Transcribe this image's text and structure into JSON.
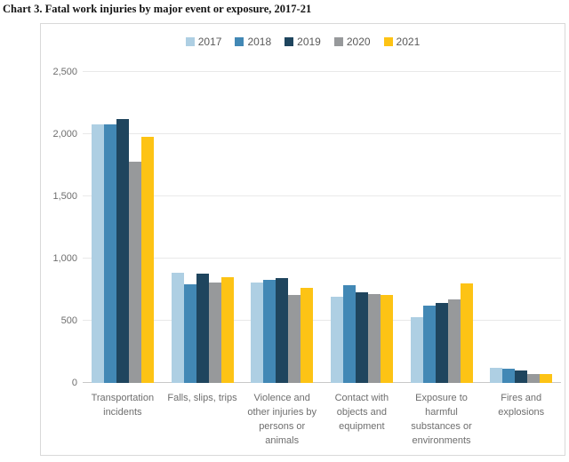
{
  "title": "Chart 3. Fatal work injuries by major event or exposure, 2017-21",
  "chart_data": {
    "type": "bar",
    "title": "Chart 3. Fatal work injuries by major event or exposure, 2017-21",
    "categories": [
      "Transportation incidents",
      "Falls, slips, trips",
      "Violence and other injuries by persons or animals",
      "Contact with objects and equipment",
      "Exposure to harmful substances or environments",
      "Fires and explosions"
    ],
    "series": [
      {
        "name": "2017",
        "color": "#aecfe3",
        "values": [
          2077,
          887,
          807,
          695,
          531,
          123
        ]
      },
      {
        "name": "2018",
        "color": "#4288b5",
        "values": [
          2080,
          791,
          828,
          786,
          621,
          115
        ]
      },
      {
        "name": "2019",
        "color": "#1f455e",
        "values": [
          2122,
          880,
          841,
          732,
          642,
          99
        ]
      },
      {
        "name": "2020",
        "color": "#97999b",
        "values": [
          1778,
          805,
          705,
          716,
          672,
          71
        ]
      },
      {
        "name": "2021",
        "color": "#fdc315",
        "values": [
          1982,
          850,
          761,
          705,
          798,
          72
        ]
      }
    ],
    "ylim": [
      0,
      2500
    ],
    "yticks": [
      {
        "value": 0,
        "label": "0"
      },
      {
        "value": 500,
        "label": "500"
      },
      {
        "value": 1000,
        "label": "1,000"
      },
      {
        "value": 1500,
        "label": "1,500"
      },
      {
        "value": 2000,
        "label": "2,000"
      },
      {
        "value": 2500,
        "label": "2,500"
      }
    ],
    "grid": true,
    "legend_position": "top"
  },
  "colors": {
    "grid": "#e9e9e9",
    "axis_line": "#c8c8c8",
    "frame_border": "#d9d9d9",
    "axis_text": "#6e6e6e",
    "legend_text": "#595959",
    "title_text": "#141414"
  }
}
